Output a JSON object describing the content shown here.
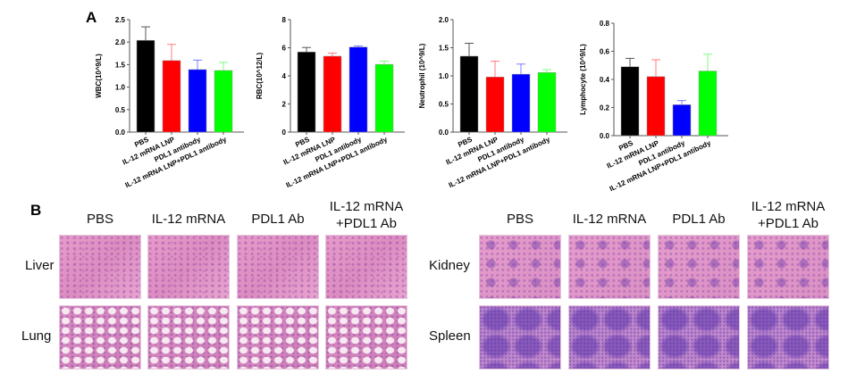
{
  "panel_a_label": "A",
  "panel_b_label": "B",
  "chart_data": [
    {
      "type": "bar",
      "ylabel": "WBC(10^9/L)",
      "ylim": [
        0,
        2.5
      ],
      "yticks": [
        "0.0",
        "0.5",
        "1.0",
        "1.5",
        "2.0",
        "2.5"
      ],
      "categories": [
        "PBS",
        "IL-12 mRNA LNP",
        "PDL1 antibody",
        "IL-12 mRNA LNP+PDL1 antibody"
      ],
      "values": [
        2.04,
        1.59,
        1.39,
        1.37
      ],
      "errors": [
        0.3,
        0.36,
        0.21,
        0.18
      ],
      "colors": [
        "#000000",
        "#ff0000",
        "#0000ff",
        "#00ff00"
      ]
    },
    {
      "type": "bar",
      "ylabel": "RBC(10^12/L)",
      "ylim": [
        0,
        8
      ],
      "yticks": [
        "0",
        "2",
        "4",
        "6",
        "8"
      ],
      "categories": [
        "PBS",
        "IL-12 mRNA LNP",
        "PDL1 antibody",
        "IL-12 mRNA LNP+PDL1 antibody"
      ],
      "values": [
        5.7,
        5.4,
        6.05,
        4.82
      ],
      "errors": [
        0.32,
        0.22,
        0.08,
        0.23
      ],
      "colors": [
        "#000000",
        "#ff0000",
        "#0000ff",
        "#00ff00"
      ]
    },
    {
      "type": "bar",
      "ylabel": "Neutrophil (10^9/L)",
      "ylim": [
        0,
        2.0
      ],
      "yticks": [
        "0.0",
        "0.5",
        "1.0",
        "1.5",
        "2.0"
      ],
      "categories": [
        "PBS",
        "IL-12 mRNA LNP",
        "PDL1 antibody",
        "IL-12 mRNA LNP+PDL1 antibody"
      ],
      "values": [
        1.35,
        0.98,
        1.03,
        1.06
      ],
      "errors": [
        0.23,
        0.28,
        0.18,
        0.05
      ],
      "colors": [
        "#000000",
        "#ff0000",
        "#0000ff",
        "#00ff00"
      ]
    },
    {
      "type": "bar",
      "ylabel": "Lymphocyte (10^9/L)",
      "ylim": [
        0,
        0.8
      ],
      "yticks": [
        "0.0",
        "0.2",
        "0.4",
        "0.6",
        "0.8"
      ],
      "categories": [
        "PBS",
        "IL-12 mRNA LNP",
        "PDL1 antibody",
        "IL-12 mRNA LNP+PDL1 antibody"
      ],
      "values": [
        0.49,
        0.42,
        0.22,
        0.46
      ],
      "errors": [
        0.06,
        0.12,
        0.03,
        0.12
      ],
      "colors": [
        "#000000",
        "#ff0000",
        "#0000ff",
        "#00ff00"
      ]
    }
  ],
  "histology": {
    "left": {
      "headers": [
        "PBS",
        "IL-12 mRNA",
        "PDL1 Ab",
        "IL-12 mRNA\n+PDL1 Ab"
      ],
      "rows": [
        "Liver",
        "Lung"
      ]
    },
    "right": {
      "headers": [
        "PBS",
        "IL-12 mRNA",
        "PDL1 Ab",
        "IL-12 mRNA\n+PDL1 Ab"
      ],
      "rows": [
        "Kidney",
        "Spleen"
      ]
    }
  }
}
